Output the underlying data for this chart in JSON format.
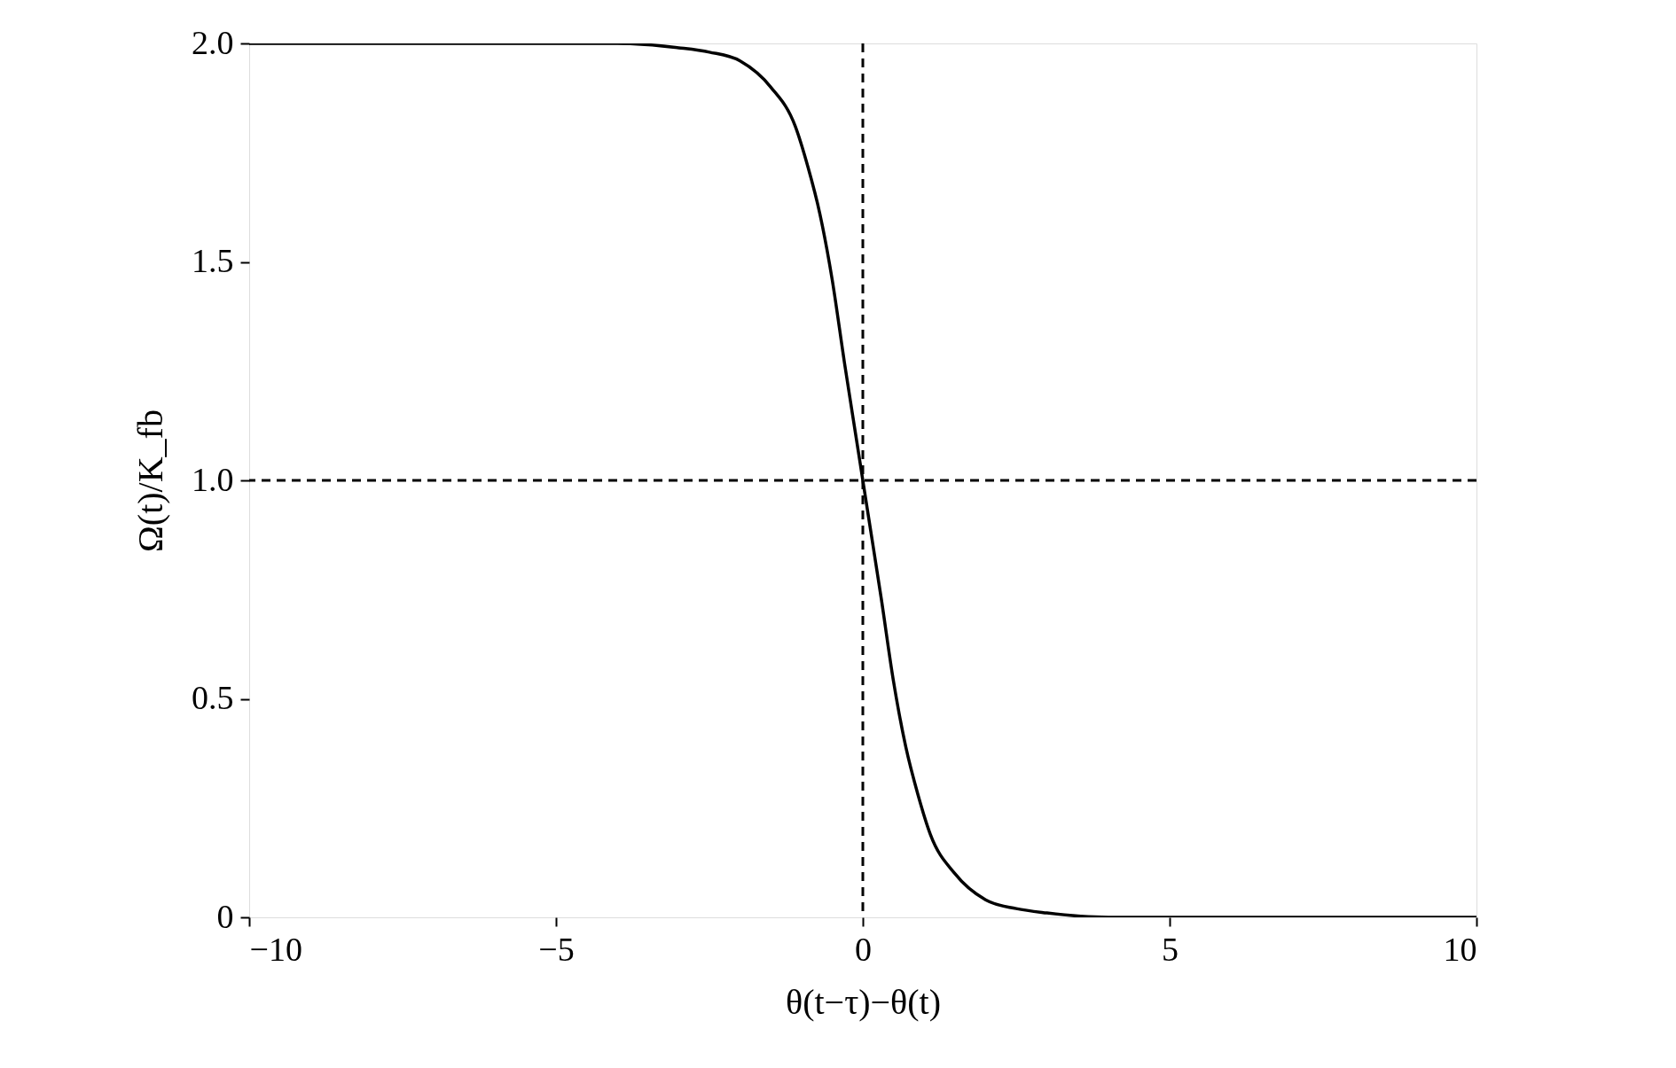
{
  "chart_data": {
    "type": "line",
    "xlabel": "θ(t−τ)−θ(t)",
    "ylabel": "Ω(t)/K_fb",
    "x": [
      -10,
      -4,
      -3,
      -2.5,
      -2,
      -1.5,
      -1.1,
      -0.9,
      -0.7,
      -0.5,
      -0.3,
      -0.1,
      0,
      0.1,
      0.3,
      0.5,
      0.7,
      0.9,
      1.1,
      1.5,
      2,
      2.5,
      3,
      4,
      10
    ],
    "series": [
      {
        "color": "#000000",
        "values": [
          2.0,
          2.0,
          1.99,
          1.98,
          1.96,
          1.9,
          1.81,
          1.72,
          1.61,
          1.46,
          1.27,
          1.09,
          1.0,
          0.91,
          0.73,
          0.54,
          0.39,
          0.28,
          0.19,
          0.1,
          0.04,
          0.02,
          0.01,
          0.0,
          0.0
        ]
      }
    ],
    "xlim": [
      -10,
      10
    ],
    "ylim": [
      0,
      2.0
    ],
    "xticks": [
      {
        "value": -10,
        "label": "−10"
      },
      {
        "value": -5,
        "label": "−5"
      },
      0,
      5,
      10
    ],
    "yticks": [
      0,
      0.5,
      {
        "value": 1,
        "label": "1.0"
      },
      1.5,
      {
        "value": 2,
        "label": "2.0"
      }
    ],
    "ref_lines": [
      {
        "axis": "x",
        "value": 0,
        "line_style": "dashed",
        "color": "#000000"
      },
      {
        "axis": "y",
        "value": 1,
        "line_style": "dashed",
        "color": "#000000"
      }
    ],
    "grid": false,
    "marker": "none",
    "line_style": "solid"
  }
}
